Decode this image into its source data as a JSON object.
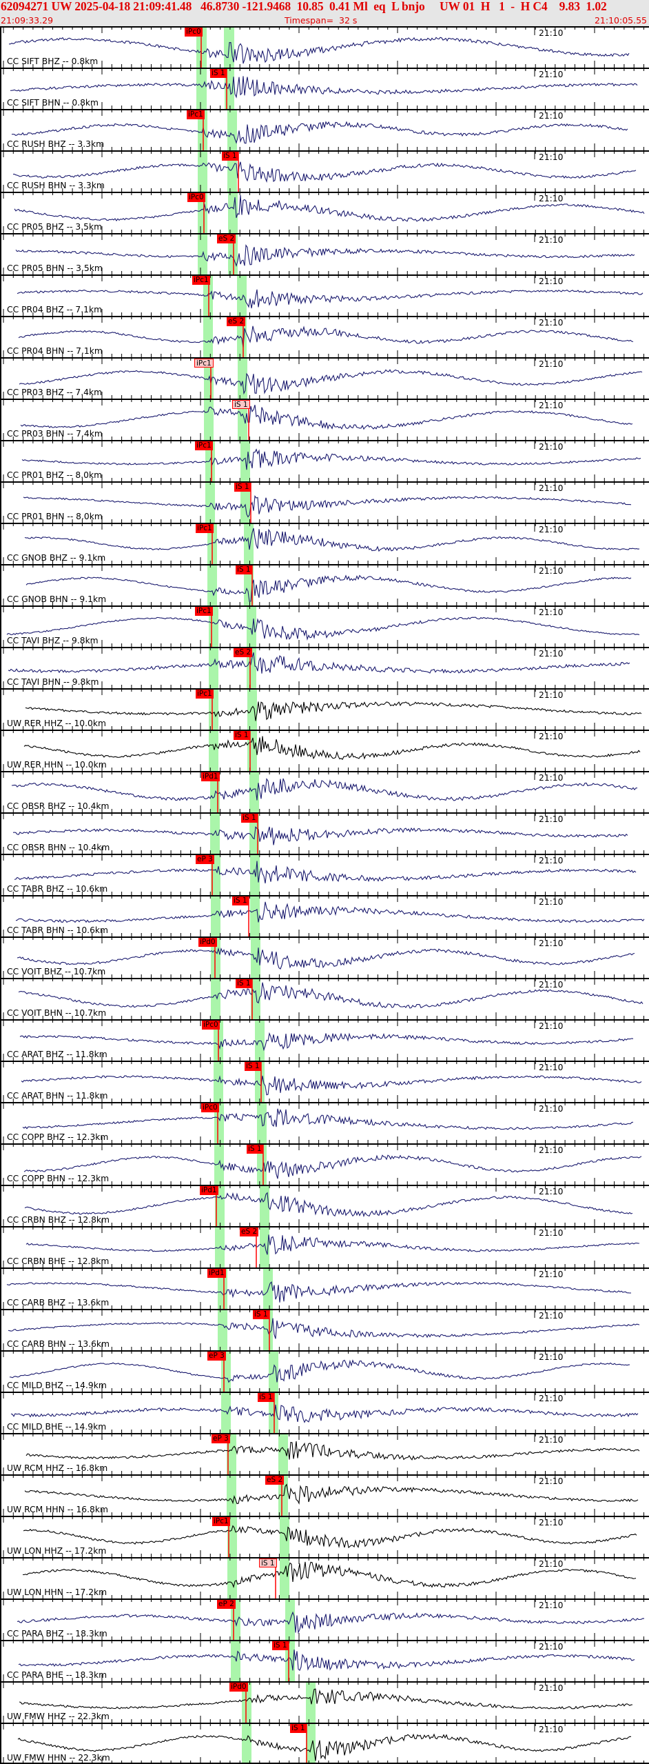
{
  "header": {
    "title": "62094271 UW 2025-04-18 21:09:41.48   46.8730 -121.9468  10.85  0.41 Ml  eq  L bnjo     UW 01  H   1  -  H C4    9.83  1.02",
    "start_time": "21:09:33.29",
    "timespan_label": "Timespan=  32 s",
    "end_time": "21:10:05.55"
  },
  "colors": {
    "header_bg": "#e6e6e6",
    "header_text": "#e00000",
    "trace_cc": "#1a1a6e",
    "trace_uw": "#000000",
    "pick_window": "#aaf5aa",
    "pick_label": "#ff0000",
    "pick_label_light": "#f8c8c8"
  },
  "time_marker_label": "21:10",
  "panels": [
    {
      "label": "CC SIFT BHZ -- 0.8km",
      "net": "CC",
      "pick": "iPc0",
      "pickx": 268,
      "light": false,
      "pw": [
        285,
        300
      ],
      "sw": [
        325,
        340
      ],
      "seed": 1
    },
    {
      "label": "CC SIFT BHN -- 0.8km",
      "net": "CC",
      "pick": "iS 1",
      "pickx": 305,
      "light": false,
      "pw": [
        285,
        300
      ],
      "sw": [
        326,
        340
      ],
      "seed": 2
    },
    {
      "label": "CC RUSH BHZ -- 3.3km",
      "net": "CC",
      "pick": "iPc1",
      "pickx": 271,
      "light": false,
      "pw": [
        287,
        301
      ],
      "sw": [
        330,
        344
      ],
      "seed": 3
    },
    {
      "label": "CC RUSH BHN -- 3.3km",
      "net": "CC",
      "pick": "iS 1",
      "pickx": 322,
      "light": false,
      "pw": [
        287,
        301
      ],
      "sw": [
        330,
        344
      ],
      "seed": 4
    },
    {
      "label": "CC PR05 BHZ -- 3.5km",
      "net": "CC",
      "pick": "iPc0",
      "pickx": 272,
      "light": false,
      "pw": [
        287,
        301
      ],
      "sw": [
        331,
        345
      ],
      "seed": 5
    },
    {
      "label": "CC PR05 BHN -- 3.5km",
      "net": "CC",
      "pick": "eS 2",
      "pickx": 315,
      "light": false,
      "pw": [
        287,
        301
      ],
      "sw": [
        331,
        345
      ],
      "seed": 6
    },
    {
      "label": "CC PR04 BHZ -- 7.1km",
      "net": "CC",
      "pick": "iPc1",
      "pickx": 279,
      "light": false,
      "pw": [
        295,
        309
      ],
      "sw": [
        344,
        358
      ],
      "seed": 7
    },
    {
      "label": "CC PR04 BHN -- 7.1km",
      "net": "CC",
      "pick": "eS 2",
      "pickx": 329,
      "light": false,
      "pw": [
        295,
        309
      ],
      "sw": [
        344,
        358
      ],
      "seed": 8
    },
    {
      "label": "CC PR03 BHZ -- 7.4km",
      "net": "CC",
      "pick": "iPc1",
      "pickx": 282,
      "light": true,
      "pw": [
        296,
        310
      ],
      "sw": [
        345,
        359
      ],
      "seed": 9
    },
    {
      "label": "CC PR03 BHN -- 7.4km",
      "net": "CC",
      "pick": "iS 1",
      "pickx": 337,
      "light": true,
      "pw": [
        296,
        310
      ],
      "sw": [
        345,
        359
      ],
      "seed": 10
    },
    {
      "label": "CC PR01 BHZ -- 8.0km",
      "net": "CC",
      "pick": "iPc1",
      "pickx": 283,
      "light": false,
      "pw": [
        298,
        312
      ],
      "sw": [
        349,
        363
      ],
      "seed": 11
    },
    {
      "label": "CC PR01 BHN -- 8.0km",
      "net": "CC",
      "pick": "iS 1",
      "pickx": 340,
      "light": false,
      "pw": [
        298,
        312
      ],
      "sw": [
        349,
        363
      ],
      "seed": 12
    },
    {
      "label": "CC GNOB BHZ -- 9.1km",
      "net": "CC",
      "pick": "iPc1",
      "pickx": 284,
      "light": false,
      "pw": [
        301,
        315
      ],
      "sw": [
        354,
        368
      ],
      "seed": 13
    },
    {
      "label": "CC GNOB BHN -- 9.1km",
      "net": "CC",
      "pick": "iS 1",
      "pickx": 342,
      "light": false,
      "pw": [
        301,
        315
      ],
      "sw": [
        354,
        368
      ],
      "seed": 14
    },
    {
      "label": "CC TAVI BHZ -- 9.8km",
      "net": "CC",
      "pick": "iPc1",
      "pickx": 283,
      "light": false,
      "pw": [
        303,
        317
      ],
      "sw": [
        358,
        372
      ],
      "seed": 15
    },
    {
      "label": "CC TAVI BHN -- 9.8km",
      "net": "CC",
      "pick": "eS 2",
      "pickx": 339,
      "light": false,
      "pw": [
        303,
        317
      ],
      "sw": [
        358,
        372
      ],
      "seed": 16
    },
    {
      "label": "UW RER HHZ -- 10.0km",
      "net": "UW",
      "pick": "iPc1",
      "pickx": 284,
      "light": false,
      "pw": [
        303,
        317
      ],
      "sw": [
        359,
        373
      ],
      "seed": 17
    },
    {
      "label": "UW RER HHN -- 10.0km",
      "net": "UW",
      "pick": "iS 1",
      "pickx": 339,
      "light": false,
      "pw": [
        303,
        317
      ],
      "sw": [
        359,
        373
      ],
      "seed": 18
    },
    {
      "label": "CC OBSR BHZ -- 10.4km",
      "net": "CC",
      "pick": "iPd1",
      "pickx": 292,
      "light": false,
      "pw": [
        305,
        319
      ],
      "sw": [
        362,
        376
      ],
      "seed": 19
    },
    {
      "label": "CC OBSR BHN -- 10.4km",
      "net": "CC",
      "pick": "iS 1",
      "pickx": 350,
      "light": false,
      "pw": [
        305,
        319
      ],
      "sw": [
        362,
        376
      ],
      "seed": 20
    },
    {
      "label": "CC TABR BHZ -- 10.6km",
      "net": "CC",
      "pick": "eP 3",
      "pickx": 284,
      "light": false,
      "pw": [
        306,
        320
      ],
      "sw": [
        363,
        377
      ],
      "seed": 21
    },
    {
      "label": "CC TABR BHN -- 10.6km",
      "net": "CC",
      "pick": "iS 1",
      "pickx": 337,
      "light": false,
      "pw": [
        306,
        320
      ],
      "sw": [
        363,
        377
      ],
      "seed": 22
    },
    {
      "label": "CC VOIT BHZ -- 10.7km",
      "net": "CC",
      "pick": "iPd0",
      "pickx": 288,
      "light": false,
      "pw": [
        306,
        320
      ],
      "sw": [
        364,
        378
      ],
      "seed": 23
    },
    {
      "label": "CC VOIT BHN -- 10.7km",
      "net": "CC",
      "pick": "iS 1",
      "pickx": 342,
      "light": false,
      "pw": [
        306,
        320
      ],
      "sw": [
        364,
        378
      ],
      "seed": 24
    },
    {
      "label": "CC ARAT BHZ -- 11.8km",
      "net": "CC",
      "pick": "iPc0",
      "pickx": 293,
      "light": false,
      "pw": [
        310,
        324
      ],
      "sw": [
        370,
        384
      ],
      "seed": 25
    },
    {
      "label": "CC ARAT BHN -- 11.8km",
      "net": "CC",
      "pick": "iS 1",
      "pickx": 355,
      "light": false,
      "pw": [
        310,
        324
      ],
      "sw": [
        370,
        384
      ],
      "seed": 26
    },
    {
      "label": "CC COPP BHZ -- 12.3km",
      "net": "CC",
      "pick": "iPc0",
      "pickx": 292,
      "light": false,
      "pw": [
        311,
        325
      ],
      "sw": [
        373,
        387
      ],
      "seed": 27
    },
    {
      "label": "CC COPP BHN -- 12.3km",
      "net": "CC",
      "pick": "iS 1",
      "pickx": 358,
      "light": false,
      "pw": [
        311,
        325
      ],
      "sw": [
        373,
        387
      ],
      "seed": 28
    },
    {
      "label": "CC CRBN BHZ -- 12.8km",
      "net": "CC",
      "pick": "iPd1",
      "pickx": 290,
      "light": false,
      "pw": [
        312,
        326
      ],
      "sw": [
        377,
        391
      ],
      "seed": 29
    },
    {
      "label": "CC CRBN BHE -- 12.8km",
      "net": "CC",
      "pick": "eS 2",
      "pickx": 348,
      "light": false,
      "pw": [
        312,
        326
      ],
      "sw": [
        377,
        391
      ],
      "seed": 30
    },
    {
      "label": "CC CARB BHZ -- 13.6km",
      "net": "CC",
      "pick": "iPd1",
      "pickx": 301,
      "light": false,
      "pw": [
        316,
        330
      ],
      "sw": [
        382,
        396
      ],
      "seed": 31
    },
    {
      "label": "CC CARB BHN -- 13.6km",
      "net": "CC",
      "pick": "iS 1",
      "pickx": 367,
      "light": false,
      "pw": [
        316,
        330
      ],
      "sw": [
        382,
        396
      ],
      "seed": 32
    },
    {
      "label": "CC MILD BHZ -- 14.9km",
      "net": "CC",
      "pick": "eP 3",
      "pickx": 301,
      "light": false,
      "pw": [
        321,
        335
      ],
      "sw": [
        390,
        404
      ],
      "seed": 33
    },
    {
      "label": "CC MILD BHE -- 14.9km",
      "net": "CC",
      "pick": "iS 1",
      "pickx": 374,
      "light": false,
      "pw": [
        321,
        335
      ],
      "sw": [
        390,
        404
      ],
      "seed": 34
    },
    {
      "label": "UW RCM HHZ -- 16.8km",
      "net": "UW",
      "pick": "eP 3",
      "pickx": 307,
      "light": false,
      "pw": [
        329,
        343
      ],
      "sw": [
        404,
        418
      ],
      "seed": 35
    },
    {
      "label": "UW RCM HHN -- 16.8km",
      "net": "UW",
      "pick": "eS 2",
      "pickx": 385,
      "light": false,
      "pw": [
        329,
        343
      ],
      "sw": [
        404,
        418
      ],
      "seed": 36
    },
    {
      "label": "UW LON HHZ -- 17.2km",
      "net": "UW",
      "pick": "iPc1",
      "pickx": 308,
      "light": false,
      "pw": [
        330,
        344
      ],
      "sw": [
        406,
        420
      ],
      "seed": 37
    },
    {
      "label": "UW LON HHN -- 17.2km",
      "net": "UW",
      "pick": "iS 1",
      "pickx": 376,
      "light": true,
      "pw": [
        330,
        344
      ],
      "sw": [
        406,
        420
      ],
      "seed": 38
    },
    {
      "label": "CC PARA BHZ -- 18.3km",
      "net": "CC",
      "pick": "eP 2",
      "pickx": 315,
      "light": false,
      "pw": [
        335,
        349
      ],
      "sw": [
        414,
        428
      ],
      "seed": 39
    },
    {
      "label": "CC PARA BHE -- 18.3km",
      "net": "CC",
      "pick": "iS 1",
      "pickx": 395,
      "light": false,
      "pw": [
        335,
        349
      ],
      "sw": [
        414,
        428
      ],
      "seed": 40
    },
    {
      "label": "UW FMW HHZ -- 22.3km",
      "net": "UW",
      "pick": "iPd0",
      "pickx": 333,
      "light": false,
      "pw": [
        351,
        365
      ],
      "sw": [
        444,
        458
      ],
      "seed": 41
    },
    {
      "label": "UW FMW HHN -- 22.3km",
      "net": "UW",
      "pick": "iS 1",
      "pickx": 421,
      "light": false,
      "pw": [
        351,
        365
      ],
      "sw": [
        444,
        458
      ],
      "seed": 42
    }
  ]
}
